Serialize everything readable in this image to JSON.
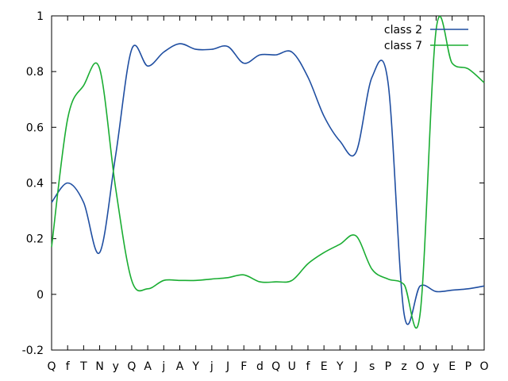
{
  "chart_data": {
    "type": "line",
    "x_labels": [
      "Q",
      "f",
      "T",
      "N",
      "y",
      "Q",
      "A",
      "j",
      "A",
      "Y",
      "j",
      "J",
      "F",
      "d",
      "Q",
      "U",
      "f",
      "E",
      "Y",
      "J",
      "s",
      "P",
      "z",
      "O",
      "y",
      "E",
      "P",
      "O"
    ],
    "ylim": [
      -0.2,
      1.0
    ],
    "yticks": [
      -0.2,
      0,
      0.2,
      0.4,
      0.6,
      0.8,
      1.0
    ],
    "ytick_labels": [
      "-0.2",
      "0",
      "0.2",
      "0.4",
      "0.6",
      "0.8",
      "1"
    ],
    "grid": false,
    "legend_position": "top-right",
    "series": [
      {
        "name": "class 2",
        "color": "#1f4ea1",
        "values": [
          0.33,
          0.4,
          0.33,
          0.15,
          0.5,
          0.88,
          0.82,
          0.87,
          0.9,
          0.88,
          0.88,
          0.89,
          0.83,
          0.86,
          0.86,
          0.87,
          0.78,
          0.64,
          0.55,
          0.51,
          0.78,
          0.76,
          -0.07,
          0.03,
          0.01,
          0.015,
          0.02,
          0.03
        ]
      },
      {
        "name": "class 7",
        "color": "#1aad32",
        "values": [
          0.17,
          0.63,
          0.75,
          0.81,
          0.38,
          0.05,
          0.02,
          0.05,
          0.05,
          0.05,
          0.055,
          0.06,
          0.07,
          0.045,
          0.045,
          0.05,
          0.11,
          0.15,
          0.18,
          0.21,
          0.09,
          0.055,
          0.035,
          -0.07,
          0.95,
          0.83,
          0.81,
          0.76
        ]
      }
    ]
  }
}
